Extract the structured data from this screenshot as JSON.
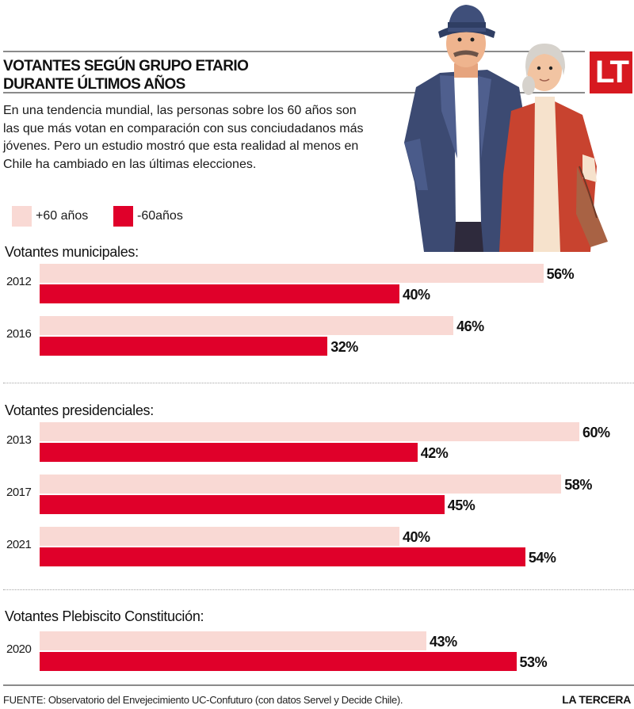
{
  "header": {
    "title_line1": "VOTANTES SEGÚN GRUPO ETARIO",
    "title_line2": "DURANTE ÚLTIMOS AÑOS",
    "intro": "En una tendencia mundial, las personas sobre los 60 años son las que más votan en comparación con sus conciudadanos más jóvenes. Pero un estudio mostró que esta realidad al menos en Chile ha cambiado en las últimas elecciones.",
    "logo_text": "LT",
    "illustration": "elderly-couple-illustration"
  },
  "colors": {
    "over60": "#f9d9d4",
    "under60": "#e0002a",
    "logo": "#d71920"
  },
  "legend": [
    {
      "label": "+60 años",
      "color": "#f9d9d4"
    },
    {
      "label": "-60años",
      "color": "#e0002a"
    }
  ],
  "chart_data": {
    "type": "bar",
    "orientation": "horizontal",
    "title": "VOTANTES SEGÚN GRUPO ETARIO DURANTE ÚLTIMOS AÑOS",
    "unit": "%",
    "xlim": [
      0,
      65
    ],
    "legend": [
      "+60 años",
      "-60años"
    ],
    "legend_position": "top-left",
    "grid": false,
    "groups": [
      {
        "title": "Votantes municipales:",
        "categories": [
          "2012",
          "2016"
        ],
        "series": [
          {
            "name": "+60 años",
            "values": [
              56,
              46
            ],
            "labels": [
              "56%",
              "46%"
            ]
          },
          {
            "name": "-60años",
            "values": [
              40,
              32
            ],
            "labels": [
              "40%",
              "32%"
            ]
          }
        ]
      },
      {
        "title": "Votantes presidenciales:",
        "categories": [
          "2013",
          "2017",
          "2021"
        ],
        "series": [
          {
            "name": "+60 años",
            "values": [
              60,
              58,
              40
            ],
            "labels": [
              "60%",
              "58%",
              "40%"
            ]
          },
          {
            "name": "-60años",
            "values": [
              42,
              45,
              54
            ],
            "labels": [
              "42%",
              "45%",
              "54%"
            ]
          }
        ]
      },
      {
        "title": "Votantes Plebiscito Constitución:",
        "categories": [
          "2020"
        ],
        "series": [
          {
            "name": "+60 años",
            "values": [
              43
            ],
            "labels": [
              "43%"
            ]
          },
          {
            "name": "-60años",
            "values": [
              53
            ],
            "labels": [
              "53%"
            ]
          }
        ]
      }
    ]
  },
  "footer": {
    "source": "FUENTE: Observatorio del Envejecimiento UC-Confuturo (con datos Servel y Decide Chile).",
    "brand": "LA TERCERA"
  }
}
